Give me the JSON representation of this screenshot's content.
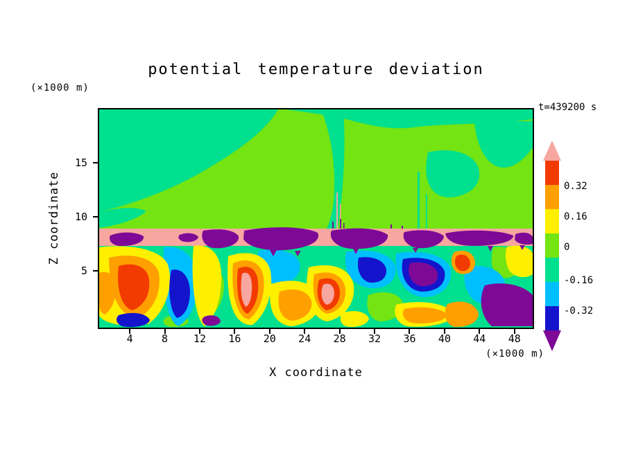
{
  "page": {
    "background": "#FFFFFF"
  },
  "chart_data": {
    "type": "heatmap",
    "title": "potential temperature deviation",
    "time_label": "t=439200 s",
    "x_axis": {
      "label": "X coordinate",
      "units_label": "(×1000 m)",
      "tick_values": [
        4,
        8,
        12,
        16,
        20,
        24,
        28,
        32,
        36,
        40,
        44,
        48
      ],
      "tick_labels": [
        "4",
        "8",
        "12",
        "16",
        "20",
        "24",
        "28",
        "32",
        "36",
        "40",
        "44",
        "48"
      ],
      "range_km": [
        0.5,
        50.1
      ]
    },
    "y_axis": {
      "label": "Z coordinate",
      "units_label": "(×1000 m)",
      "tick_values": [
        15,
        10,
        5
      ],
      "tick_labels": [
        "15",
        "10",
        "5"
      ],
      "range_km": [
        0,
        20
      ]
    },
    "colorbar": {
      "tick_labels": [
        "0.32",
        "0.16",
        "0",
        "-0.16",
        "-0.32"
      ],
      "band_keys_top_to_bottom": [
        "pink",
        "red",
        "orange",
        "yellow",
        "chartreuse",
        "spring_green",
        "cyan",
        "blue",
        "purple"
      ],
      "arrow_top": true,
      "arrow_bottom": true
    },
    "palette": {
      "pink": "#F7A6A0",
      "red": "#F23B00",
      "orange": "#FFA000",
      "yellow": "#FFF000",
      "chartreuse": "#74E412",
      "spring_green": "#00E08E",
      "cyan": "#00BFFF",
      "blue": "#1414CD",
      "purple": "#7D0996"
    },
    "regions": [
      {
        "name": "upper-stable-region",
        "z_km": [
          9,
          20
        ],
        "description": "near-zero deviation; broad chartreuse and spring-green areas with faint pink streaks"
      },
      {
        "name": "inversion-band",
        "z_km": [
          7.5,
          9
        ],
        "description": "continuous pink (strong positive) layer with embedded purple (strong negative) pockets and drips"
      },
      {
        "name": "convective-layer",
        "z_km": [
          0,
          7.5
        ],
        "description": "turbulent plumes spanning the full color scale: red/orange/yellow warm updrafts, cyan/blue/purple cold pools, pink extreme cores"
      }
    ]
  }
}
